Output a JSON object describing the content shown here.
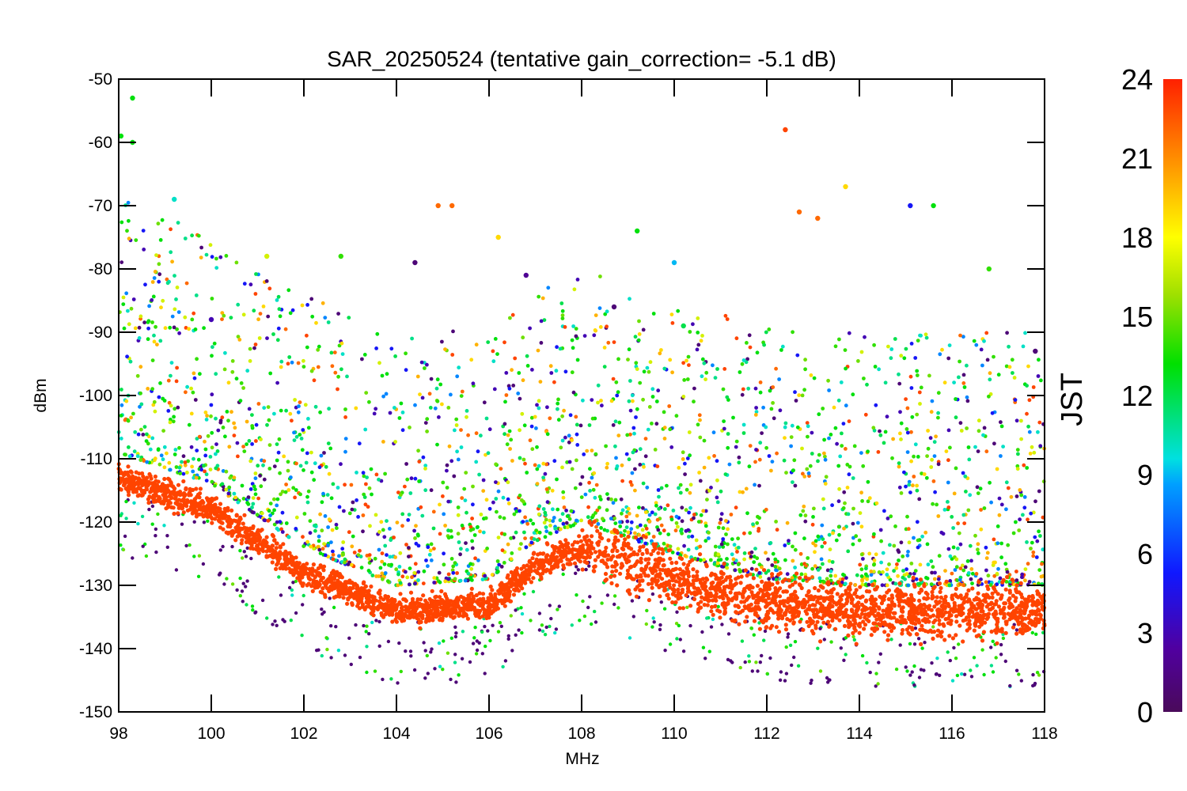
{
  "chart_data": {
    "type": "scatter",
    "title": "SAR_20250524 (tentative gain_correction= -5.1 dB)",
    "xlabel": "MHz",
    "ylabel": "dBm",
    "xlim": [
      98,
      118
    ],
    "ylim": [
      -150,
      -50
    ],
    "x_ticks": [
      "98",
      "100",
      "102",
      "104",
      "106",
      "108",
      "110",
      "112",
      "114",
      "116",
      "118"
    ],
    "y_ticks": [
      "-50",
      "-60",
      "-70",
      "-80",
      "-90",
      "-100",
      "-110",
      "-120",
      "-130",
      "-140",
      "-150"
    ],
    "grid": false,
    "legend": "none",
    "colorbar": {
      "label": "JST",
      "range": [
        0,
        24
      ],
      "ticks": [
        "0",
        "3",
        "6",
        "9",
        "12",
        "15",
        "18",
        "21",
        "24"
      ],
      "colormap": "rainbow (purple → blue → cyan → green → yellow → orange → red)"
    },
    "noise_floor_approx": [
      {
        "x": 98,
        "y": -113
      },
      {
        "x": 100,
        "y": -118
      },
      {
        "x": 102,
        "y": -128
      },
      {
        "x": 104,
        "y": -134
      },
      {
        "x": 106,
        "y": -133
      },
      {
        "x": 107,
        "y": -127
      },
      {
        "x": 108,
        "y": -124
      },
      {
        "x": 110,
        "y": -129
      },
      {
        "x": 112,
        "y": -133
      },
      {
        "x": 114,
        "y": -134
      },
      {
        "x": 116,
        "y": -134
      },
      {
        "x": 118,
        "y": -134
      }
    ],
    "points_sample": [
      {
        "x": 98.3,
        "y": -53,
        "jst": 13
      },
      {
        "x": 98.3,
        "y": -60,
        "jst": 13
      },
      {
        "x": 98.05,
        "y": -59,
        "jst": 13
      },
      {
        "x": 99.2,
        "y": -69,
        "jst": 10
      },
      {
        "x": 100.0,
        "y": -88,
        "jst": 3
      },
      {
        "x": 101.2,
        "y": -78,
        "jst": 17
      },
      {
        "x": 102.8,
        "y": -78,
        "jst": 14
      },
      {
        "x": 104.4,
        "y": -79,
        "jst": 1
      },
      {
        "x": 105.2,
        "y": -70,
        "jst": 22
      },
      {
        "x": 104.9,
        "y": -70,
        "jst": 22
      },
      {
        "x": 106.2,
        "y": -75,
        "jst": 19
      },
      {
        "x": 106.8,
        "y": -81,
        "jst": 2
      },
      {
        "x": 109.2,
        "y": -74,
        "jst": 13
      },
      {
        "x": 112.4,
        "y": -58,
        "jst": 23
      },
      {
        "x": 112.7,
        "y": -71,
        "jst": 22
      },
      {
        "x": 113.1,
        "y": -72,
        "jst": 22
      },
      {
        "x": 113.7,
        "y": -67,
        "jst": 19
      },
      {
        "x": 115.1,
        "y": -70,
        "jst": 5
      },
      {
        "x": 115.6,
        "y": -70,
        "jst": 13
      },
      {
        "x": 116.8,
        "y": -80,
        "jst": 14
      },
      {
        "x": 108.7,
        "y": -86,
        "jst": 1
      },
      {
        "x": 110.0,
        "y": -79,
        "jst": 9
      },
      {
        "x": 110.2,
        "y": -89,
        "jst": 12
      },
      {
        "x": 117.8,
        "y": -93,
        "jst": 1
      }
    ]
  }
}
